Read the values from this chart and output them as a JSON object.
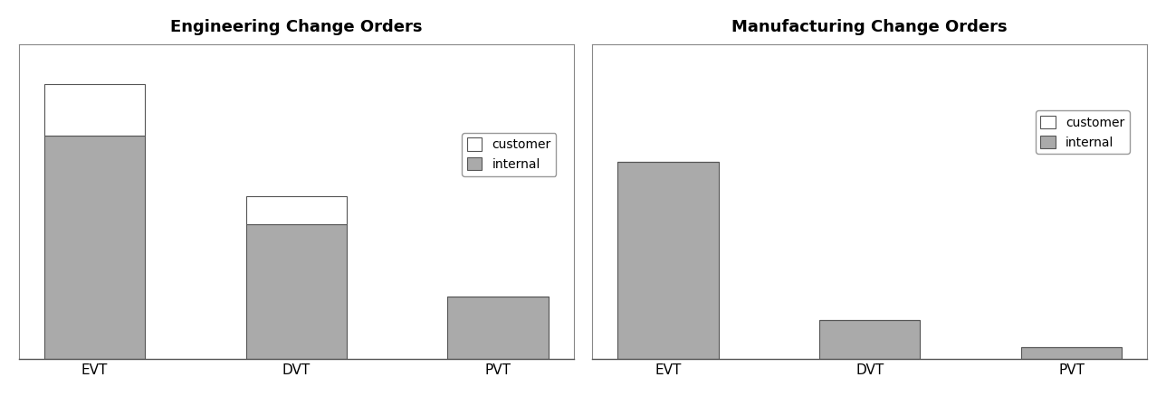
{
  "eng_title": "Engineering Change Orders",
  "mfg_title": "Manufacturing Change Orders",
  "categories": [
    "EVT",
    "DVT",
    "PVT"
  ],
  "eng_internal": [
    78,
    47,
    22
  ],
  "eng_customer": [
    18,
    10,
    0
  ],
  "mfg_internal": [
    50,
    10,
    3
  ],
  "mfg_customer": [
    0,
    0,
    0
  ],
  "internal_color": "#aaaaaa",
  "customer_color": "#ffffff",
  "bar_edge_color": "#555555",
  "bar_width": 0.5,
  "legend_customer_label": "customer",
  "legend_internal_label": "internal",
  "background_color": "#ffffff",
  "title_fontsize": 13,
  "tick_fontsize": 11,
  "eng_ylim": 110,
  "mfg_ylim": 80
}
